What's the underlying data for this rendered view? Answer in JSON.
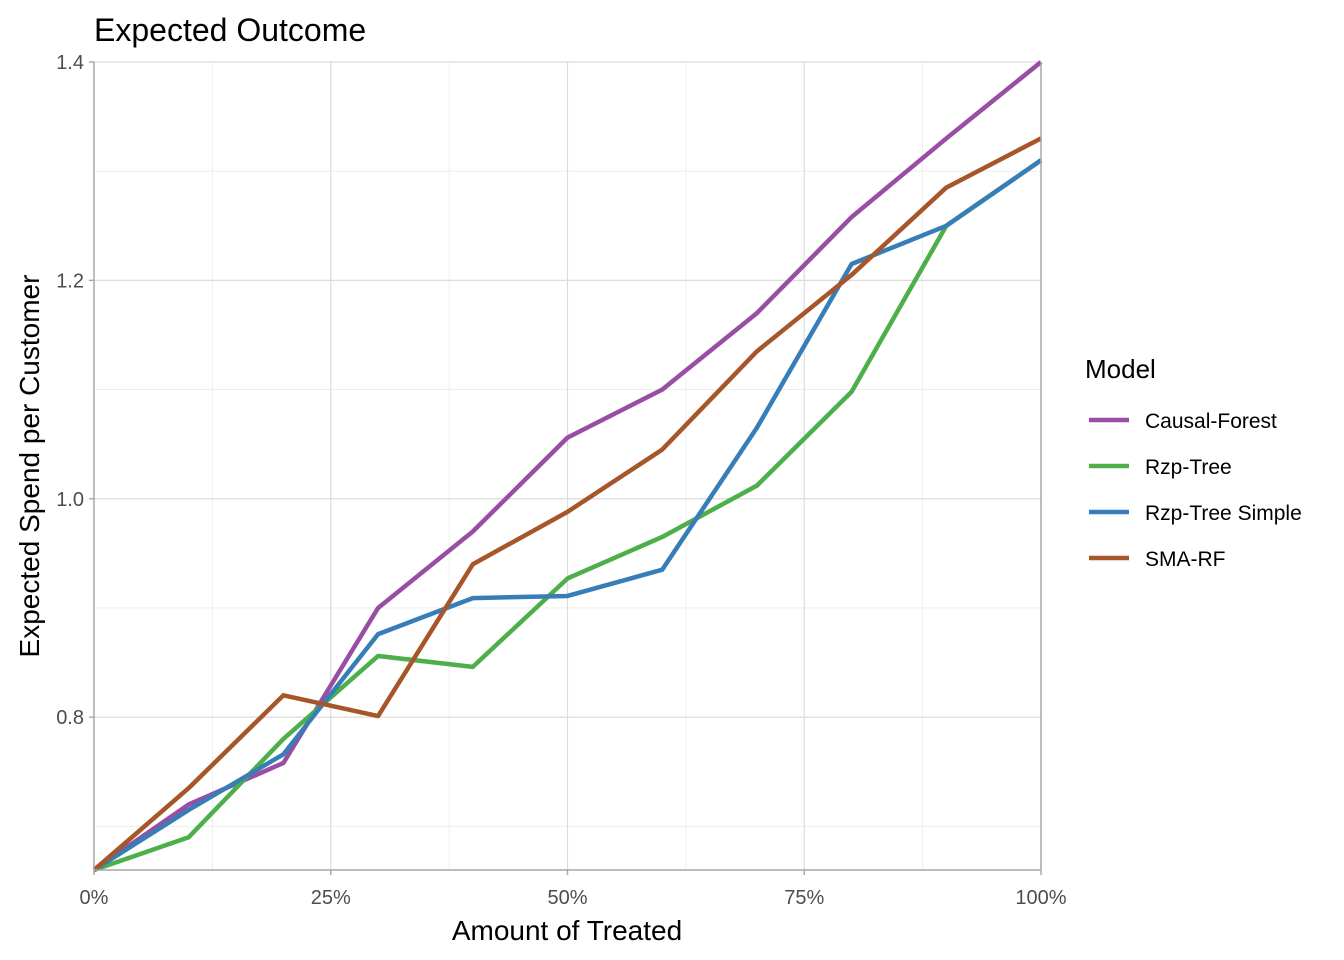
{
  "chart_data": {
    "type": "line",
    "title": "Expected Outcome",
    "xlabel": "Amount of Treated",
    "ylabel": "Expected Spend per Customer",
    "xlim": [
      0,
      1
    ],
    "ylim": [
      0.66,
      1.4
    ],
    "x_ticks": [
      {
        "value": 0,
        "label": "0%"
      },
      {
        "value": 0.25,
        "label": "25%"
      },
      {
        "value": 0.5,
        "label": "50%"
      },
      {
        "value": 0.75,
        "label": "75%"
      },
      {
        "value": 1,
        "label": "100%"
      }
    ],
    "y_ticks": [
      {
        "value": 0.8,
        "label": "0.8"
      },
      {
        "value": 1.0,
        "label": "1.0"
      },
      {
        "value": 1.2,
        "label": "1.2"
      },
      {
        "value": 1.4,
        "label": "1.4"
      }
    ],
    "x_minor": [
      0.125,
      0.375,
      0.625,
      0.875
    ],
    "y_minor": [
      0.7,
      0.9,
      1.1,
      1.3
    ],
    "grid": true,
    "legend": {
      "title": "Model",
      "position": "right"
    },
    "x": [
      0,
      0.1,
      0.2,
      0.3,
      0.4,
      0.5,
      0.6,
      0.7,
      0.8,
      0.9,
      1.0
    ],
    "series": [
      {
        "name": "Causal-Forest",
        "color": "#984ea3",
        "values": [
          0.66,
          0.72,
          0.758,
          0.9,
          0.97,
          1.056,
          1.1,
          1.17,
          1.258,
          1.33,
          1.4
        ]
      },
      {
        "name": "Rzp-Tree",
        "color": "#4daf4a",
        "values": [
          0.66,
          0.69,
          0.78,
          0.856,
          0.846,
          0.927,
          0.965,
          1.012,
          1.098,
          1.25,
          1.31
        ]
      },
      {
        "name": "Rzp-Tree Simple",
        "color": "#377eb8",
        "values": [
          0.66,
          0.715,
          0.766,
          0.876,
          0.909,
          0.911,
          0.935,
          1.065,
          1.215,
          1.25,
          1.31
        ]
      },
      {
        "name": "SMA-RF",
        "color": "#a65628",
        "values": [
          0.66,
          0.735,
          0.82,
          0.801,
          0.94,
          0.988,
          1.045,
          1.135,
          1.205,
          1.285,
          1.33
        ]
      }
    ]
  }
}
